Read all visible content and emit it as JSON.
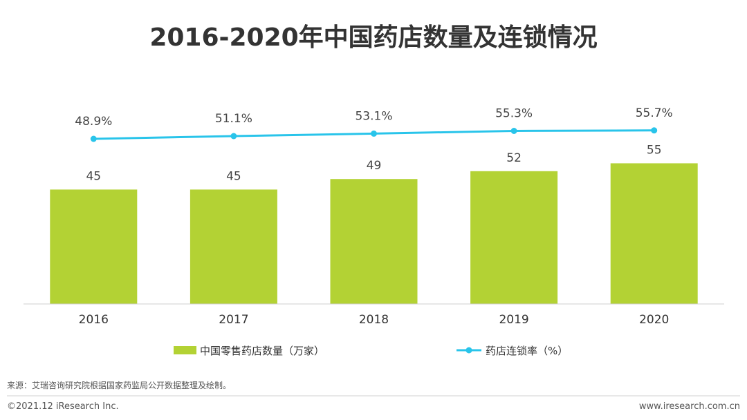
{
  "chart_data": {
    "type": "bar",
    "title": "2016-2020年中国药店数量及连锁情况",
    "categories": [
      "2016",
      "2017",
      "2018",
      "2019",
      "2020"
    ],
    "series": [
      {
        "name": "中国零售药店数量（万家）",
        "kind": "bar",
        "color": "#b3d234",
        "values": [
          45,
          45,
          49,
          52,
          55
        ],
        "labels": [
          "45",
          "45",
          "49",
          "52",
          "55"
        ]
      },
      {
        "name": "药店连锁率（%）",
        "kind": "line",
        "color": "#29c4ea",
        "values": [
          48.9,
          51.1,
          53.1,
          55.3,
          55.7
        ],
        "labels": [
          "48.9%",
          "51.1%",
          "53.1%",
          "55.3%",
          "55.7%"
        ]
      }
    ],
    "legend_position": "bottom",
    "grid": false
  },
  "footer": {
    "source": "来源：艾瑞咨询研究院根据国家药监局公开数据整理及绘制。",
    "copyright": "©2021.12 iResearch Inc.",
    "website": "www.iresearch.com.cn"
  }
}
